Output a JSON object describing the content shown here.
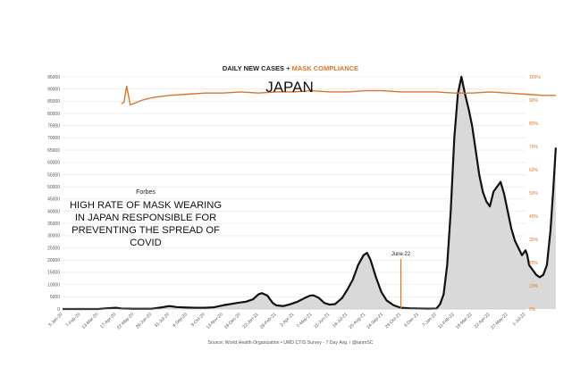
{
  "header": {
    "title_part1": "DAILY NEW CASES",
    "title_sep": " + ",
    "title_part2": "MASK COMPLIANCE",
    "country": "JAPAN",
    "source": "Source: World Health Organization • UMD CTIS Survey - 7 Day Avg. / @ianmSC"
  },
  "annotation": {
    "publisher": "Forbes",
    "headline_lines": [
      "HIGH RATE OF MASK WEARING",
      "IN JAPAN RESPONSIBLE FOR",
      "PREVENTING THE SPREAD OF",
      "COVID"
    ],
    "date_label": "June 22",
    "date_index": 19
  },
  "colors": {
    "cases": "#111111",
    "cases_fill": "#d9d9d9",
    "mask": "#d9762b",
    "title_dark": "#222222",
    "title_orange": "#d9762b",
    "annotation_line": "#d9762b",
    "grid": "#e6e6e6",
    "axis_text": "#555555"
  },
  "chart_data": {
    "type": "line",
    "x": [
      "3-Jan-20",
      "7-Feb-20",
      "13-Mar-20",
      "17-Apr-20",
      "22-May-20",
      "26-Jun-20",
      "31-Jul-20",
      "4-Sep-20",
      "9-Oct-20",
      "13-Nov-20",
      "18-Dec-20",
      "22-Jan-21",
      "26-Feb-21",
      "2-Apr-21",
      "7-May-21",
      "11-Jun-21",
      "16-Jul-21",
      "20-Aug-21",
      "24-Sep-21",
      "29-Oct-21",
      "3-Dec-21",
      "7-Jan-22",
      "11-Feb-22",
      "18-Mar-22",
      "22-Apr-22",
      "27-May-22",
      "1-Jul-22"
    ],
    "y_left": {
      "min": 0,
      "max": 95000,
      "ticks": [
        0,
        5000,
        10000,
        15000,
        20000,
        25000,
        30000,
        35000,
        40000,
        45000,
        50000,
        55000,
        60000,
        65000,
        70000,
        75000,
        80000,
        85000,
        90000,
        95000
      ]
    },
    "y_right": {
      "min": 0,
      "max": 100,
      "unit": "%",
      "ticks": [
        0,
        10,
        20,
        30,
        40,
        50,
        60,
        70,
        80,
        90,
        100
      ]
    },
    "series": [
      {
        "name": "DAILY NEW CASES",
        "axis": "left",
        "points": [
          [
            0,
            0
          ],
          [
            2,
            0
          ],
          [
            2.5,
            300
          ],
          [
            3,
            500
          ],
          [
            3.3,
            200
          ],
          [
            4,
            100
          ],
          [
            4.5,
            80
          ],
          [
            5,
            100
          ],
          [
            5.5,
            600
          ],
          [
            6,
            1200
          ],
          [
            6.4,
            800
          ],
          [
            7,
            600
          ],
          [
            7.5,
            500
          ],
          [
            8,
            500
          ],
          [
            8.5,
            700
          ],
          [
            9,
            1500
          ],
          [
            9.4,
            2000
          ],
          [
            9.8,
            2500
          ],
          [
            10.3,
            3000
          ],
          [
            10.7,
            4000
          ],
          [
            11,
            6000
          ],
          [
            11.2,
            6500
          ],
          [
            11.5,
            5500
          ],
          [
            11.8,
            2500
          ],
          [
            12,
            1500
          ],
          [
            12.4,
            1200
          ],
          [
            12.8,
            2000
          ],
          [
            13.2,
            3000
          ],
          [
            13.6,
            4500
          ],
          [
            13.9,
            5500
          ],
          [
            14.1,
            5600
          ],
          [
            14.4,
            4500
          ],
          [
            14.7,
            2500
          ],
          [
            15,
            1800
          ],
          [
            15.3,
            2000
          ],
          [
            15.7,
            4500
          ],
          [
            16,
            8000
          ],
          [
            16.3,
            12000
          ],
          [
            16.6,
            18000
          ],
          [
            16.9,
            22000
          ],
          [
            17.1,
            23000
          ],
          [
            17.3,
            20000
          ],
          [
            17.6,
            13000
          ],
          [
            17.9,
            7000
          ],
          [
            18.2,
            3500
          ],
          [
            18.6,
            1500
          ],
          [
            19,
            500
          ],
          [
            19.5,
            300
          ],
          [
            20,
            200
          ],
          [
            20.5,
            150
          ],
          [
            21,
            200
          ],
          [
            21.2,
            2000
          ],
          [
            21.4,
            6000
          ],
          [
            21.6,
            18000
          ],
          [
            21.8,
            40000
          ],
          [
            22,
            70000
          ],
          [
            22.2,
            88000
          ],
          [
            22.4,
            95000
          ],
          [
            22.6,
            88000
          ],
          [
            22.8,
            82000
          ],
          [
            23,
            75000
          ],
          [
            23.2,
            65000
          ],
          [
            23.4,
            55000
          ],
          [
            23.6,
            48000
          ],
          [
            23.8,
            44000
          ],
          [
            24,
            42000
          ],
          [
            24.2,
            48000
          ],
          [
            24.4,
            50000
          ],
          [
            24.6,
            52000
          ],
          [
            24.8,
            47000
          ],
          [
            25,
            40000
          ],
          [
            25.2,
            33000
          ],
          [
            25.4,
            28000
          ],
          [
            25.6,
            25000
          ],
          [
            25.8,
            22000
          ],
          [
            26,
            24000
          ],
          [
            26.1,
            22000
          ],
          [
            26.2,
            18000
          ],
          [
            26.4,
            16000
          ],
          [
            26.6,
            14000
          ],
          [
            26.8,
            13000
          ],
          [
            27,
            14000
          ],
          [
            27.2,
            18000
          ],
          [
            27.4,
            32000
          ],
          [
            27.55,
            48000
          ],
          [
            27.7,
            66000
          ]
        ]
      },
      {
        "name": "MASK COMPLIANCE",
        "axis": "right",
        "points": [
          [
            3.3,
            88.5
          ],
          [
            3.45,
            89
          ],
          [
            3.6,
            96
          ],
          [
            3.8,
            88
          ],
          [
            4,
            88.5
          ],
          [
            4.5,
            90
          ],
          [
            5,
            91
          ],
          [
            5.5,
            91.5
          ],
          [
            6,
            92
          ],
          [
            7,
            92.5
          ],
          [
            8,
            93
          ],
          [
            9,
            93
          ],
          [
            10,
            93.5
          ],
          [
            11,
            93
          ],
          [
            12,
            93.5
          ],
          [
            13,
            93.5
          ],
          [
            14,
            94
          ],
          [
            15,
            93.5
          ],
          [
            16,
            93.5
          ],
          [
            17,
            94
          ],
          [
            18,
            94
          ],
          [
            19,
            93.5
          ],
          [
            20,
            93.5
          ],
          [
            21,
            93.5
          ],
          [
            22,
            93
          ],
          [
            23,
            93
          ],
          [
            24,
            93.5
          ],
          [
            25,
            93
          ],
          [
            26,
            92.5
          ],
          [
            27,
            92
          ],
          [
            27.7,
            92
          ]
        ]
      }
    ]
  }
}
